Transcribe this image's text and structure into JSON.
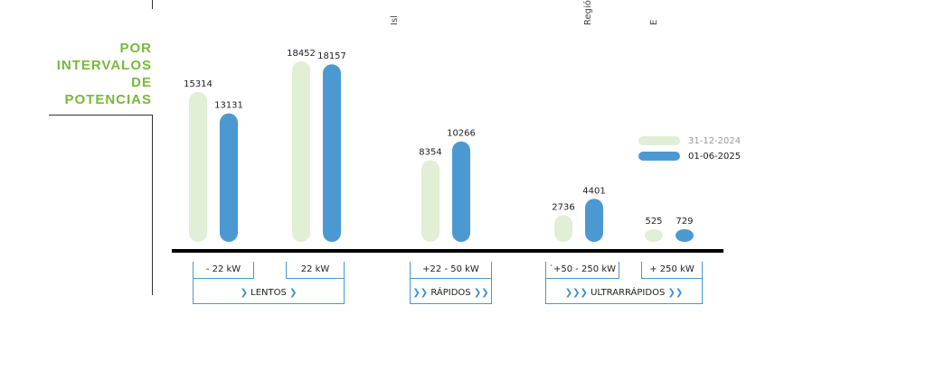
{
  "section_title": [
    "POR",
    "INTERVALOS",
    "DE",
    "POTENCIAS"
  ],
  "top_clipped": [
    "Isl",
    "Regió",
    "E"
  ],
  "colors": {
    "series1": "#e0efd5",
    "series2": "#4c99d2",
    "title_green": "#79b83a",
    "box_blue": "#4a97cc",
    "baseline": "#000000"
  },
  "chart_data": {
    "type": "bar",
    "categories": [
      "- 22 kW",
      "22 kW",
      "+22 - 50 kW",
      "˙+50 - 250 kW",
      "+ 250 kW"
    ],
    "series": [
      {
        "name": "31-12-2024",
        "values": [
          15314,
          18452,
          8354,
          2736,
          525
        ]
      },
      {
        "name": "01-06-2025",
        "values": [
          13131,
          18157,
          10266,
          4401,
          729
        ]
      }
    ],
    "groups": [
      {
        "label": "LENTOS",
        "categories": [
          "- 22 kW",
          "22 kW"
        ]
      },
      {
        "label": "RÁPIDOS",
        "categories": [
          "+22 - 50 kW"
        ]
      },
      {
        "label": "ULTRARRÁPIDOS",
        "categories": [
          "˙+50 - 250 kW",
          "+ 250 kW"
        ]
      }
    ],
    "legend_position": "right",
    "ylim": [
      0,
      20000
    ]
  }
}
